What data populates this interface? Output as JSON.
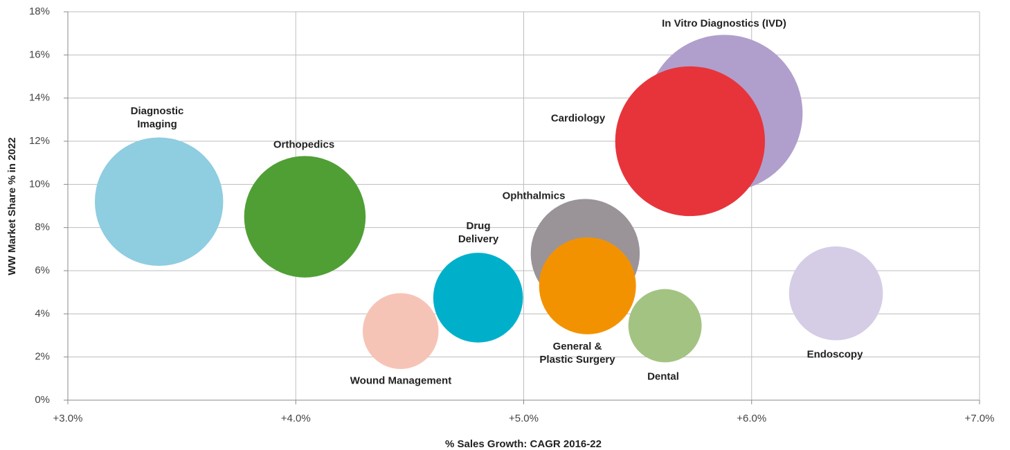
{
  "chart_data": {
    "type": "bubble",
    "x_label": "% Sales Growth: CAGR 2016-22",
    "y_label": "WW Market Share % in 2022",
    "xlim": [
      3,
      7
    ],
    "xticks": [
      {
        "value": 3,
        "label": "+3.0%"
      },
      {
        "value": 4,
        "label": "+4.0%"
      },
      {
        "value": 5,
        "label": "+5.0%"
      },
      {
        "value": 6,
        "label": "+6.0%"
      },
      {
        "value": 7,
        "label": "+7.0%"
      }
    ],
    "ylim": [
      0,
      18
    ],
    "yticks": [
      {
        "value": 0,
        "label": "0%"
      },
      {
        "value": 2,
        "label": "2%"
      },
      {
        "value": 4,
        "label": "4%"
      },
      {
        "value": 6,
        "label": "6%"
      },
      {
        "value": 8,
        "label": "8%"
      },
      {
        "value": 10,
        "label": "10%"
      },
      {
        "value": 12,
        "label": "12%"
      },
      {
        "value": 14,
        "label": "14%"
      },
      {
        "value": 16,
        "label": "16%"
      },
      {
        "value": 18,
        "label": "18%"
      }
    ],
    "grid": true,
    "series": [
      {
        "name": "Diagnostic Imaging",
        "color": "#8fcde0",
        "x": 3.4,
        "y": 9.2,
        "size": 86
      },
      {
        "name": "Orthopedics",
        "color": "#4f9f35",
        "x": 4.04,
        "y": 8.5,
        "size": 77
      },
      {
        "name": "Wound Management",
        "color": "#f6c4b6",
        "x": 4.46,
        "y": 3.2,
        "size": 30
      },
      {
        "name": "Drug Delivery",
        "color": "#00b0cb",
        "x": 4.8,
        "y": 4.75,
        "size": 42
      },
      {
        "name": "Ophthalmics",
        "color": "#9a9499",
        "x": 5.27,
        "y": 6.8,
        "size": 62
      },
      {
        "name": "General & Plastic Surgery",
        "color": "#f39200",
        "x": 5.28,
        "y": 5.3,
        "size": 49
      },
      {
        "name": "Dental",
        "color": "#a3c382",
        "x": 5.62,
        "y": 3.45,
        "size": 28
      },
      {
        "name": "Endoscopy",
        "color": "#d5cde6",
        "x": 6.37,
        "y": 4.95,
        "size": 46
      },
      {
        "name": "In Vitro Diagnostics (IVD)",
        "color": "#b09fcc",
        "x": 5.88,
        "y": 13.3,
        "size": 128
      },
      {
        "name": "Cardiology",
        "color": "#e7343b",
        "x": 5.73,
        "y": 12.0,
        "size": 117
      }
    ]
  }
}
